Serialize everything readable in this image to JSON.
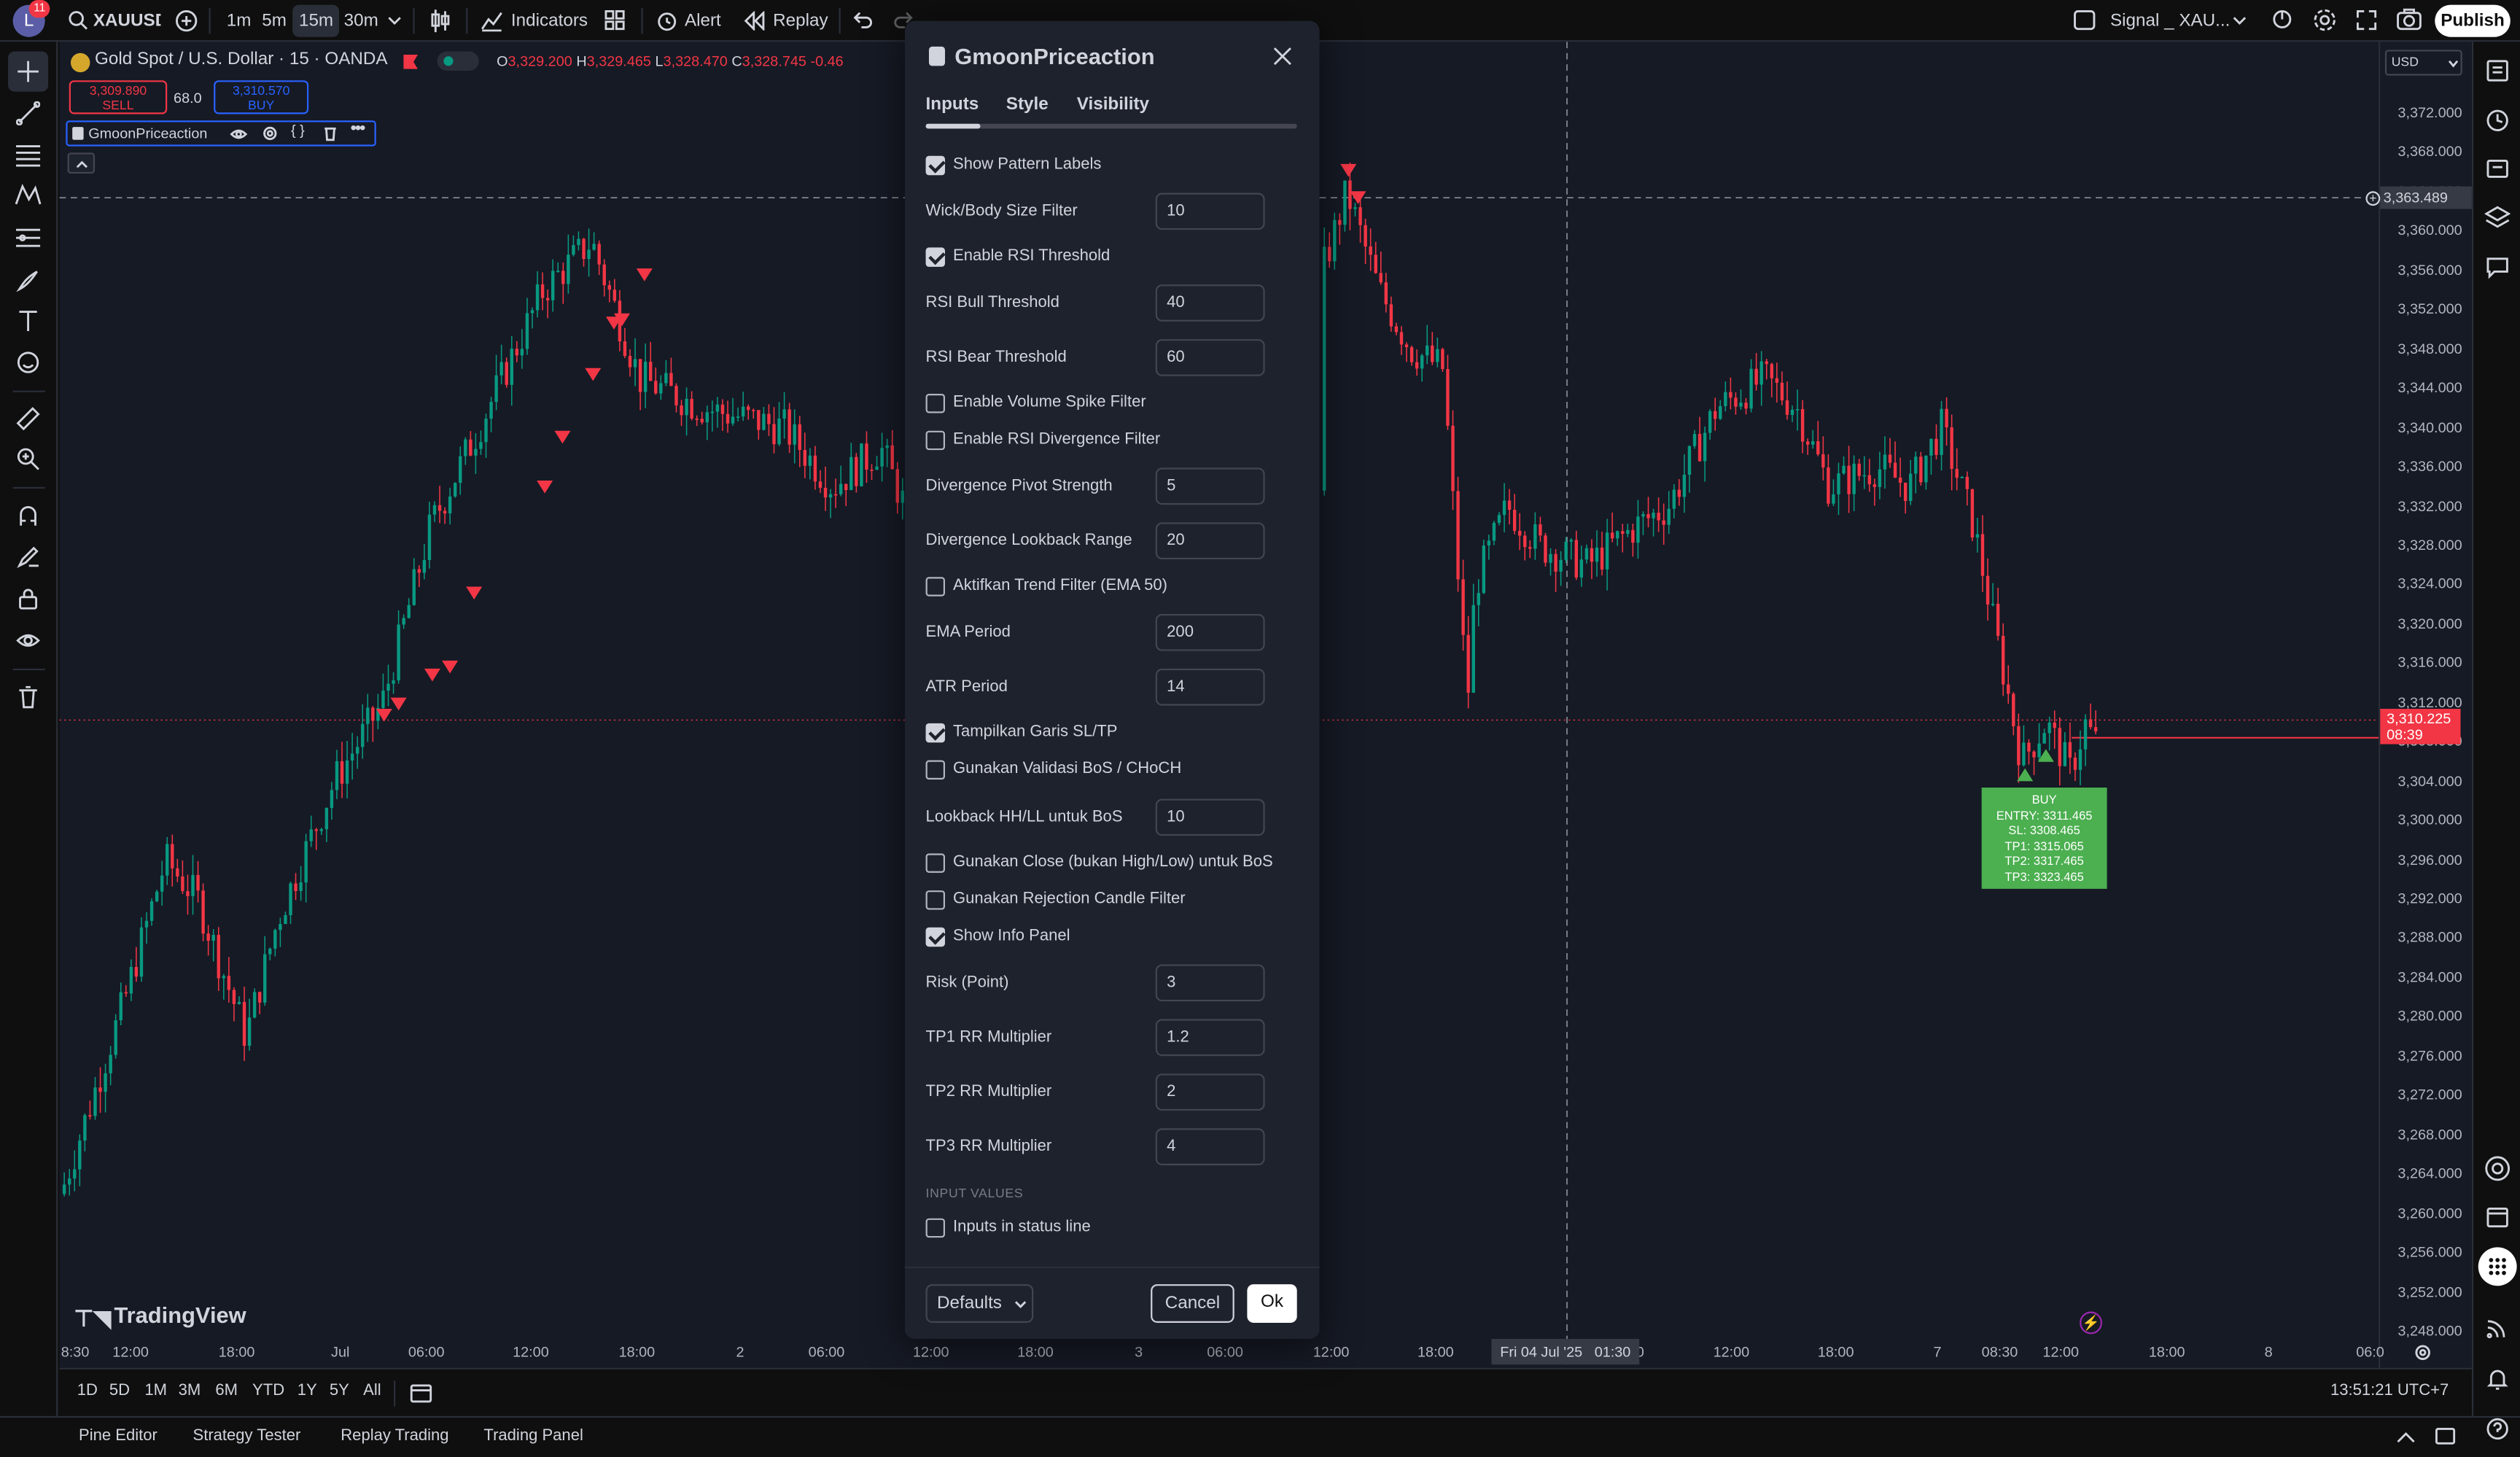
{
  "topbar": {
    "notif_count": "11",
    "symbol": "XAUUSD",
    "intervals": [
      "1m",
      "5m",
      "15m",
      "30m"
    ],
    "indicators_label": "Indicators",
    "alert_label": "Alert",
    "replay_label": "Replay",
    "layout_name": "Signal _ XAU...",
    "publish_label": "Publish"
  },
  "legend": {
    "symbol_title": "Gold Spot / U.S. Dollar · 15 · OANDA",
    "o_label": "O",
    "o_val": "3,329.200",
    "h_label": "H",
    "h_val": "3,329.465",
    "l_label": "L",
    "l_val": "3,328.470",
    "c_label": "C",
    "c_val": "3,328.745",
    "chg": "-0.46",
    "sell_price": "3,309.890",
    "sell_label": "SELL",
    "spread": "68.0",
    "buy_price": "3,310.570",
    "buy_label": "BUY",
    "indicator_name": "GmoonPriceaction"
  },
  "currency": "USD",
  "price_scale": [
    "3,372.000",
    "3,368.000",
    "3,364.000",
    "3,360.000",
    "3,356.000",
    "3,352.000",
    "3,348.000",
    "3,344.000",
    "3,340.000",
    "3,336.000",
    "3,332.000",
    "3,328.000",
    "3,324.000",
    "3,320.000",
    "3,316.000",
    "3,312.000",
    "3,308.000",
    "3,304.000",
    "3,300.000",
    "3,296.000",
    "3,292.000",
    "3,288.000",
    "3,284.000",
    "3,280.000",
    "3,276.000",
    "3,272.000",
    "3,268.000",
    "3,264.000",
    "3,260.000",
    "3,256.000",
    "3,252.000",
    "3,248.000"
  ],
  "crosshair_price": "3,363.489",
  "last_price": "3,310.225",
  "countdown": "08:39",
  "time_scale": [
    "8:30",
    "12:00",
    "18:00",
    "Jul",
    "06:00",
    "12:00",
    "18:00",
    "2",
    "06:00",
    "12:00",
    "18:00",
    "3",
    "06:00",
    "12:00",
    "18:00",
    "0",
    "12:00",
    "18:00",
    "7",
    "08:30",
    "12:00",
    "18:00",
    "8",
    "06:0"
  ],
  "crosshair_time": "Fri 04 Jul '25   01:30",
  "buy_signal": {
    "title": "BUY",
    "entry": "ENTRY: 3311.465",
    "sl": "SL: 3308.465",
    "tp1": "TP1: 3315.065",
    "tp2": "TP2: 3317.465",
    "tp3": "TP3: 3323.465"
  },
  "watermark": "TradingView",
  "ranges": [
    "1D",
    "5D",
    "1M",
    "3M",
    "6M",
    "YTD",
    "1Y",
    "5Y",
    "All"
  ],
  "clock": "13:51:21 UTC+7",
  "footer_tabs": [
    "Pine Editor",
    "Strategy Tester",
    "Replay Trading",
    "Trading Panel"
  ],
  "dialog": {
    "title": "GmoonPriceaction",
    "tabs": [
      "Inputs",
      "Style",
      "Visibility"
    ],
    "show_pattern_labels": "Show Pattern Labels",
    "wick_filter_label": "Wick/Body Size Filter",
    "wick_filter_value": "10",
    "enable_rsi_label": "Enable RSI Threshold",
    "rsi_bull_label": "RSI Bull Threshold",
    "rsi_bull_value": "40",
    "rsi_bear_label": "RSI Bear Threshold",
    "rsi_bear_value": "60",
    "vol_spike_label": "Enable Volume Spike Filter",
    "rsi_div_label": "Enable RSI Divergence Filter",
    "div_pivot_label": "Divergence Pivot Strength",
    "div_pivot_value": "5",
    "div_lookback_label": "Divergence Lookback Range",
    "div_lookback_value": "20",
    "trend_filter_label": "Aktifkan Trend Filter (EMA 50)",
    "ema_label": "EMA Period",
    "ema_value": "200",
    "atr_label": "ATR Period",
    "atr_value": "14",
    "sltp_label": "Tampilkan Garis SL/TP",
    "bos_label": "Gunakan Validasi BoS / CHoCH",
    "lookback_bos_label": "Lookback HH/LL untuk BoS",
    "lookback_bos_value": "10",
    "close_bos_label": "Gunakan Close (bukan High/Low) untuk BoS",
    "rejection_label": "Gunakan Rejection Candle Filter",
    "info_panel_label": "Show Info Panel",
    "risk_label": "Risk (Point)",
    "risk_value": "3",
    "tp1_label": "TP1 RR Multiplier",
    "tp1_value": "1.2",
    "tp2_label": "TP2 RR Multiplier",
    "tp2_value": "2",
    "tp3_label": "TP3 RR Multiplier",
    "tp3_value": "4",
    "input_values_header": "INPUT VALUES",
    "status_line_label": "Inputs in status line",
    "defaults_label": "Defaults",
    "cancel_label": "Cancel",
    "ok_label": "Ok"
  },
  "colors": {
    "bull": "#089981",
    "bear": "#f23645",
    "accent": "#2962ff",
    "buy_box": "#4caf50"
  }
}
